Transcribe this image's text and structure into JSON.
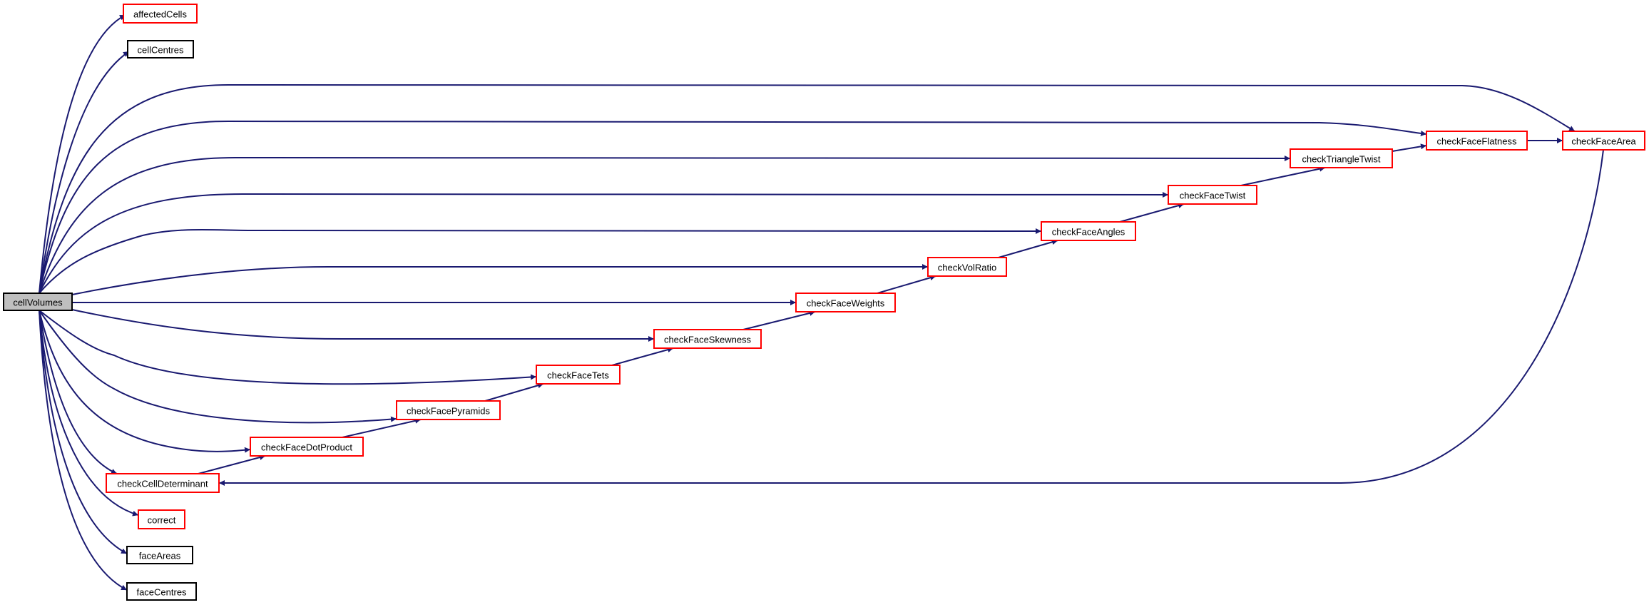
{
  "graph": {
    "colors": {
      "edge": "#191970",
      "root_fill": "#bfbfbf",
      "root_border": "#000000",
      "linked_border": "#ff0000",
      "plain_border": "#000000"
    },
    "nodes": [
      {
        "id": "cellVolumes",
        "label": "cellVolumes",
        "kind": "root"
      },
      {
        "id": "affectedCells",
        "label": "affectedCells",
        "kind": "linked"
      },
      {
        "id": "cellCentres",
        "label": "cellCentres",
        "kind": "plain"
      },
      {
        "id": "checkFaceArea",
        "label": "checkFaceArea",
        "kind": "linked"
      },
      {
        "id": "checkFaceFlatness",
        "label": "checkFaceFlatness",
        "kind": "linked"
      },
      {
        "id": "checkTriangleTwist",
        "label": "checkTriangleTwist",
        "kind": "linked"
      },
      {
        "id": "checkFaceTwist",
        "label": "checkFaceTwist",
        "kind": "linked"
      },
      {
        "id": "checkFaceAngles",
        "label": "checkFaceAngles",
        "kind": "linked"
      },
      {
        "id": "checkVolRatio",
        "label": "checkVolRatio",
        "kind": "linked"
      },
      {
        "id": "checkFaceWeights",
        "label": "checkFaceWeights",
        "kind": "linked"
      },
      {
        "id": "checkFaceSkewness",
        "label": "checkFaceSkewness",
        "kind": "linked"
      },
      {
        "id": "checkFaceTets",
        "label": "checkFaceTets",
        "kind": "linked"
      },
      {
        "id": "checkFacePyramids",
        "label": "checkFacePyramids",
        "kind": "linked"
      },
      {
        "id": "checkFaceDotProduct",
        "label": "checkFaceDotProduct",
        "kind": "linked"
      },
      {
        "id": "checkCellDeterminant",
        "label": "checkCellDeterminant",
        "kind": "linked"
      },
      {
        "id": "correct",
        "label": "correct",
        "kind": "linked"
      },
      {
        "id": "faceAreas",
        "label": "faceAreas",
        "kind": "plain"
      },
      {
        "id": "faceCentres",
        "label": "faceCentres",
        "kind": "plain"
      }
    ],
    "edges": [
      [
        "cellVolumes",
        "affectedCells"
      ],
      [
        "cellVolumes",
        "cellCentres"
      ],
      [
        "cellVolumes",
        "checkFaceArea"
      ],
      [
        "cellVolumes",
        "checkFaceFlatness"
      ],
      [
        "cellVolumes",
        "checkTriangleTwist"
      ],
      [
        "cellVolumes",
        "checkFaceTwist"
      ],
      [
        "cellVolumes",
        "checkFaceAngles"
      ],
      [
        "cellVolumes",
        "checkVolRatio"
      ],
      [
        "cellVolumes",
        "checkFaceWeights"
      ],
      [
        "cellVolumes",
        "checkFaceSkewness"
      ],
      [
        "cellVolumes",
        "checkFaceTets"
      ],
      [
        "cellVolumes",
        "checkFacePyramids"
      ],
      [
        "cellVolumes",
        "checkFaceDotProduct"
      ],
      [
        "cellVolumes",
        "checkCellDeterminant"
      ],
      [
        "cellVolumes",
        "correct"
      ],
      [
        "cellVolumes",
        "faceAreas"
      ],
      [
        "cellVolumes",
        "faceCentres"
      ],
      [
        "checkFaceFlatness",
        "checkFaceArea"
      ],
      [
        "checkTriangleTwist",
        "checkFaceFlatness"
      ],
      [
        "checkFaceTwist",
        "checkTriangleTwist"
      ],
      [
        "checkFaceAngles",
        "checkFaceTwist"
      ],
      [
        "checkVolRatio",
        "checkFaceAngles"
      ],
      [
        "checkFaceWeights",
        "checkVolRatio"
      ],
      [
        "checkFaceSkewness",
        "checkFaceWeights"
      ],
      [
        "checkFaceTets",
        "checkFaceSkewness"
      ],
      [
        "checkFacePyramids",
        "checkFaceTets"
      ],
      [
        "checkFaceDotProduct",
        "checkFacePyramids"
      ],
      [
        "checkCellDeterminant",
        "checkFaceDotProduct"
      ],
      [
        "checkFaceArea",
        "checkCellDeterminant"
      ]
    ]
  }
}
